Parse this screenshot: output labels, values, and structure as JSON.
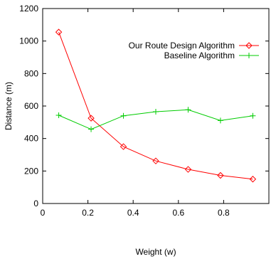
{
  "chart_data": {
    "type": "line",
    "title": "",
    "xlabel": "Weight (w)",
    "ylabel": "Distance (m)",
    "xlim": [
      0,
      1
    ],
    "ylim": [
      0,
      1200
    ],
    "xticks": [
      0,
      0.2,
      0.4,
      0.6,
      0.8
    ],
    "xtick_labels": [
      "0",
      "0.2",
      "0.4",
      "0.6",
      "0.8"
    ],
    "yticks": [
      0,
      200,
      400,
      600,
      800,
      1000,
      1200
    ],
    "ytick_labels": [
      "0",
      "200",
      "400",
      "600",
      "800",
      "1000",
      "1200"
    ],
    "grid": false,
    "legend_position": "top-right",
    "series": [
      {
        "name": "Our Route Design Algorithm",
        "color": "#ff0000",
        "marker": "diamond",
        "x": [
          0.071,
          0.214,
          0.357,
          0.5,
          0.643,
          0.786,
          0.929
        ],
        "y": [
          1055,
          525,
          350,
          262,
          210,
          173,
          150
        ]
      },
      {
        "name": "Baseline Algorithm",
        "color": "#00cc00",
        "marker": "plus",
        "x": [
          0.071,
          0.214,
          0.357,
          0.5,
          0.643,
          0.786,
          0.929
        ],
        "y": [
          543,
          457,
          540,
          565,
          577,
          511,
          540
        ]
      }
    ]
  }
}
